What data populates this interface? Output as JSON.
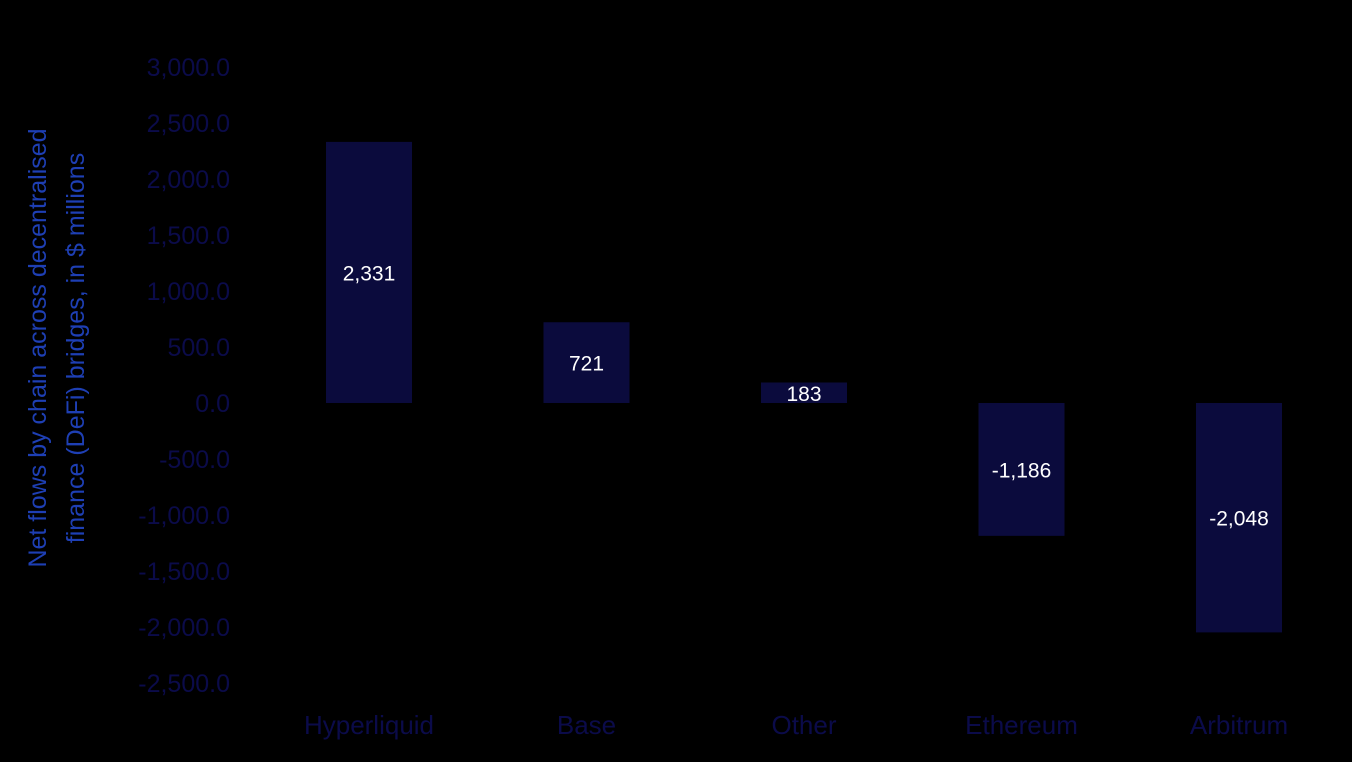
{
  "chart_data": {
    "type": "bar",
    "title": "",
    "xlabel": "",
    "ylabel": "Net flows by chain across decentralised finance (DeFi) bridges, in $ millions",
    "ylabel_lines": [
      "Net flows by chain across decentralised",
      "finance (DeFi) bridges, in $ millions"
    ],
    "categories": [
      "Hyperliquid",
      "Base",
      "Other",
      "Ethereum",
      "Arbitrum"
    ],
    "values": [
      2331,
      721,
      183,
      -1186,
      -2048
    ],
    "value_labels": [
      "2,331",
      "721",
      "183",
      "-1,186",
      "-2,048"
    ],
    "yticks": [
      3000,
      2500,
      2000,
      1500,
      1000,
      500,
      0,
      -500,
      -1000,
      -1500,
      -2000,
      -2500
    ],
    "ytick_labels": [
      "3,000.0",
      "2,500.0",
      "2,000.0",
      "1,500.0",
      "1,000.0",
      "500.0",
      "0.0",
      "-500.0",
      "-1,000.0",
      "-1,500.0",
      "-2,000.0",
      "-2,500.0"
    ],
    "ylim": [
      -2500,
      3000
    ],
    "grid": false,
    "legend": "none",
    "colors": {
      "background": "#000000",
      "bar": "#0b0b3d",
      "tick_text": "#0b0b4a",
      "axis_title": "#1e3fb4",
      "data_label": "#ffffff"
    }
  }
}
